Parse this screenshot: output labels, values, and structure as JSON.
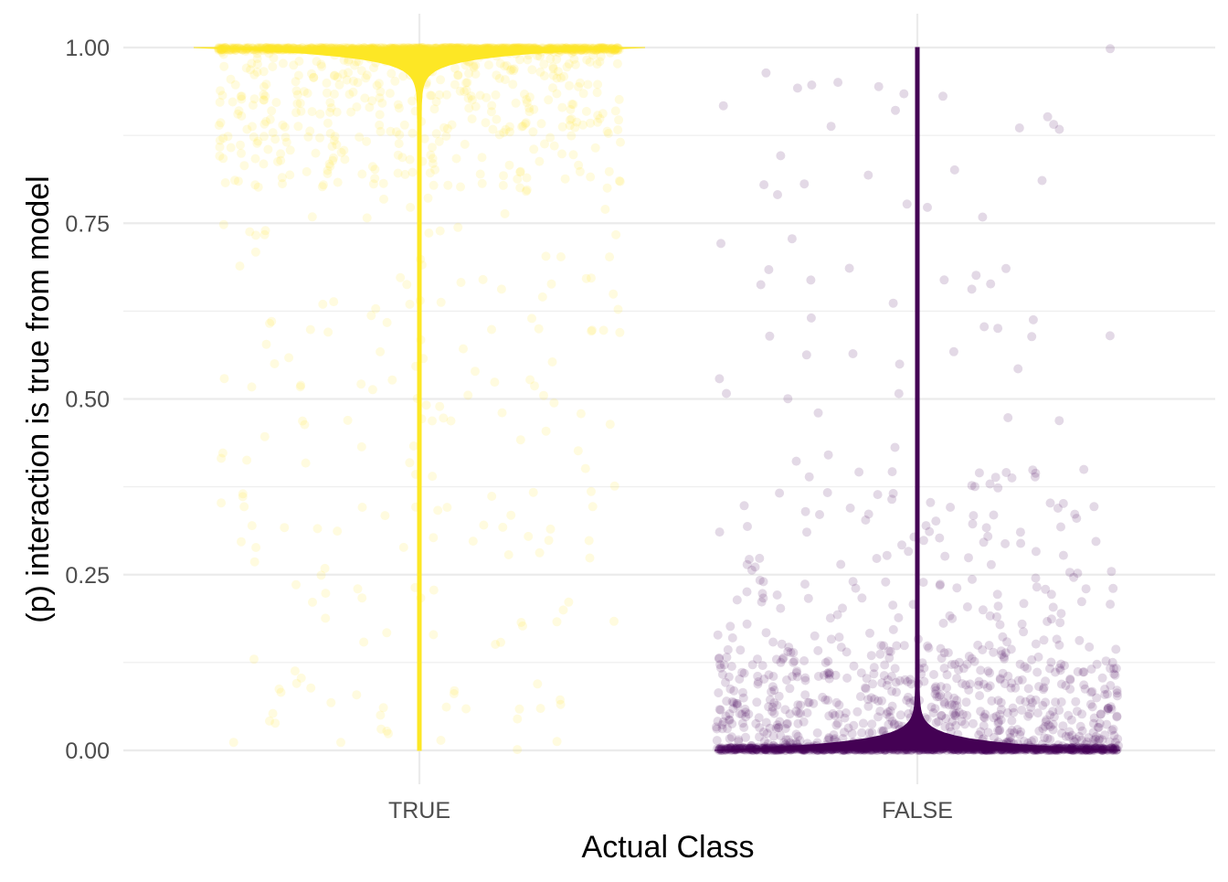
{
  "chart_data": {
    "type": "scatter",
    "subtype": "jittered points with violin overlay",
    "title": "",
    "xlabel": "Actual Class",
    "ylabel": "(p) interaction is true from model",
    "categories": [
      "TRUE",
      "FALSE"
    ],
    "ylim": [
      0,
      1
    ],
    "yticks": [
      0.0,
      0.25,
      0.5,
      0.75,
      1.0
    ],
    "ytick_labels": [
      "0.00",
      "0.25",
      "0.50",
      "0.75",
      "1.00"
    ],
    "grid": true,
    "legend": "none",
    "series": [
      {
        "category": "TRUE",
        "color": "#fde725",
        "point_alpha": 0.15,
        "n_points_approx": 2600,
        "distribution": "concentrated near 1.00, sparse tail toward 0.00",
        "sample_values": [
          1.0,
          1.0,
          1.0,
          0.99,
          0.98,
          0.97,
          0.95,
          0.93,
          0.9,
          0.88,
          0.85,
          0.83,
          0.8,
          0.78,
          0.75,
          0.72,
          0.7,
          0.68,
          0.65,
          0.62,
          0.6,
          0.57,
          0.55,
          0.52,
          0.5,
          0.47,
          0.44,
          0.4,
          0.37,
          0.34,
          0.31,
          0.28,
          0.25,
          0.22,
          0.2,
          0.17,
          0.15,
          0.12,
          0.1,
          0.08,
          0.06,
          0.04,
          0.03,
          0.02,
          0.01,
          0.0
        ]
      },
      {
        "category": "FALSE",
        "color": "#440154",
        "point_alpha": 0.15,
        "n_points_approx": 3000,
        "distribution": "concentrated near 0.00, sparse tail toward 1.00",
        "sample_values": [
          0.0,
          0.0,
          0.0,
          0.01,
          0.02,
          0.03,
          0.05,
          0.07,
          0.1,
          0.12,
          0.15,
          0.18,
          0.2,
          0.22,
          0.25,
          0.28,
          0.3,
          0.33,
          0.35,
          0.38,
          0.4,
          0.43,
          0.45,
          0.48,
          0.5,
          0.53,
          0.55,
          0.58,
          0.6,
          0.63,
          0.66,
          0.7,
          0.72,
          0.75,
          0.78,
          0.8,
          0.83,
          0.85,
          0.87,
          0.9,
          0.93,
          0.95,
          0.97,
          0.99
        ]
      }
    ]
  }
}
